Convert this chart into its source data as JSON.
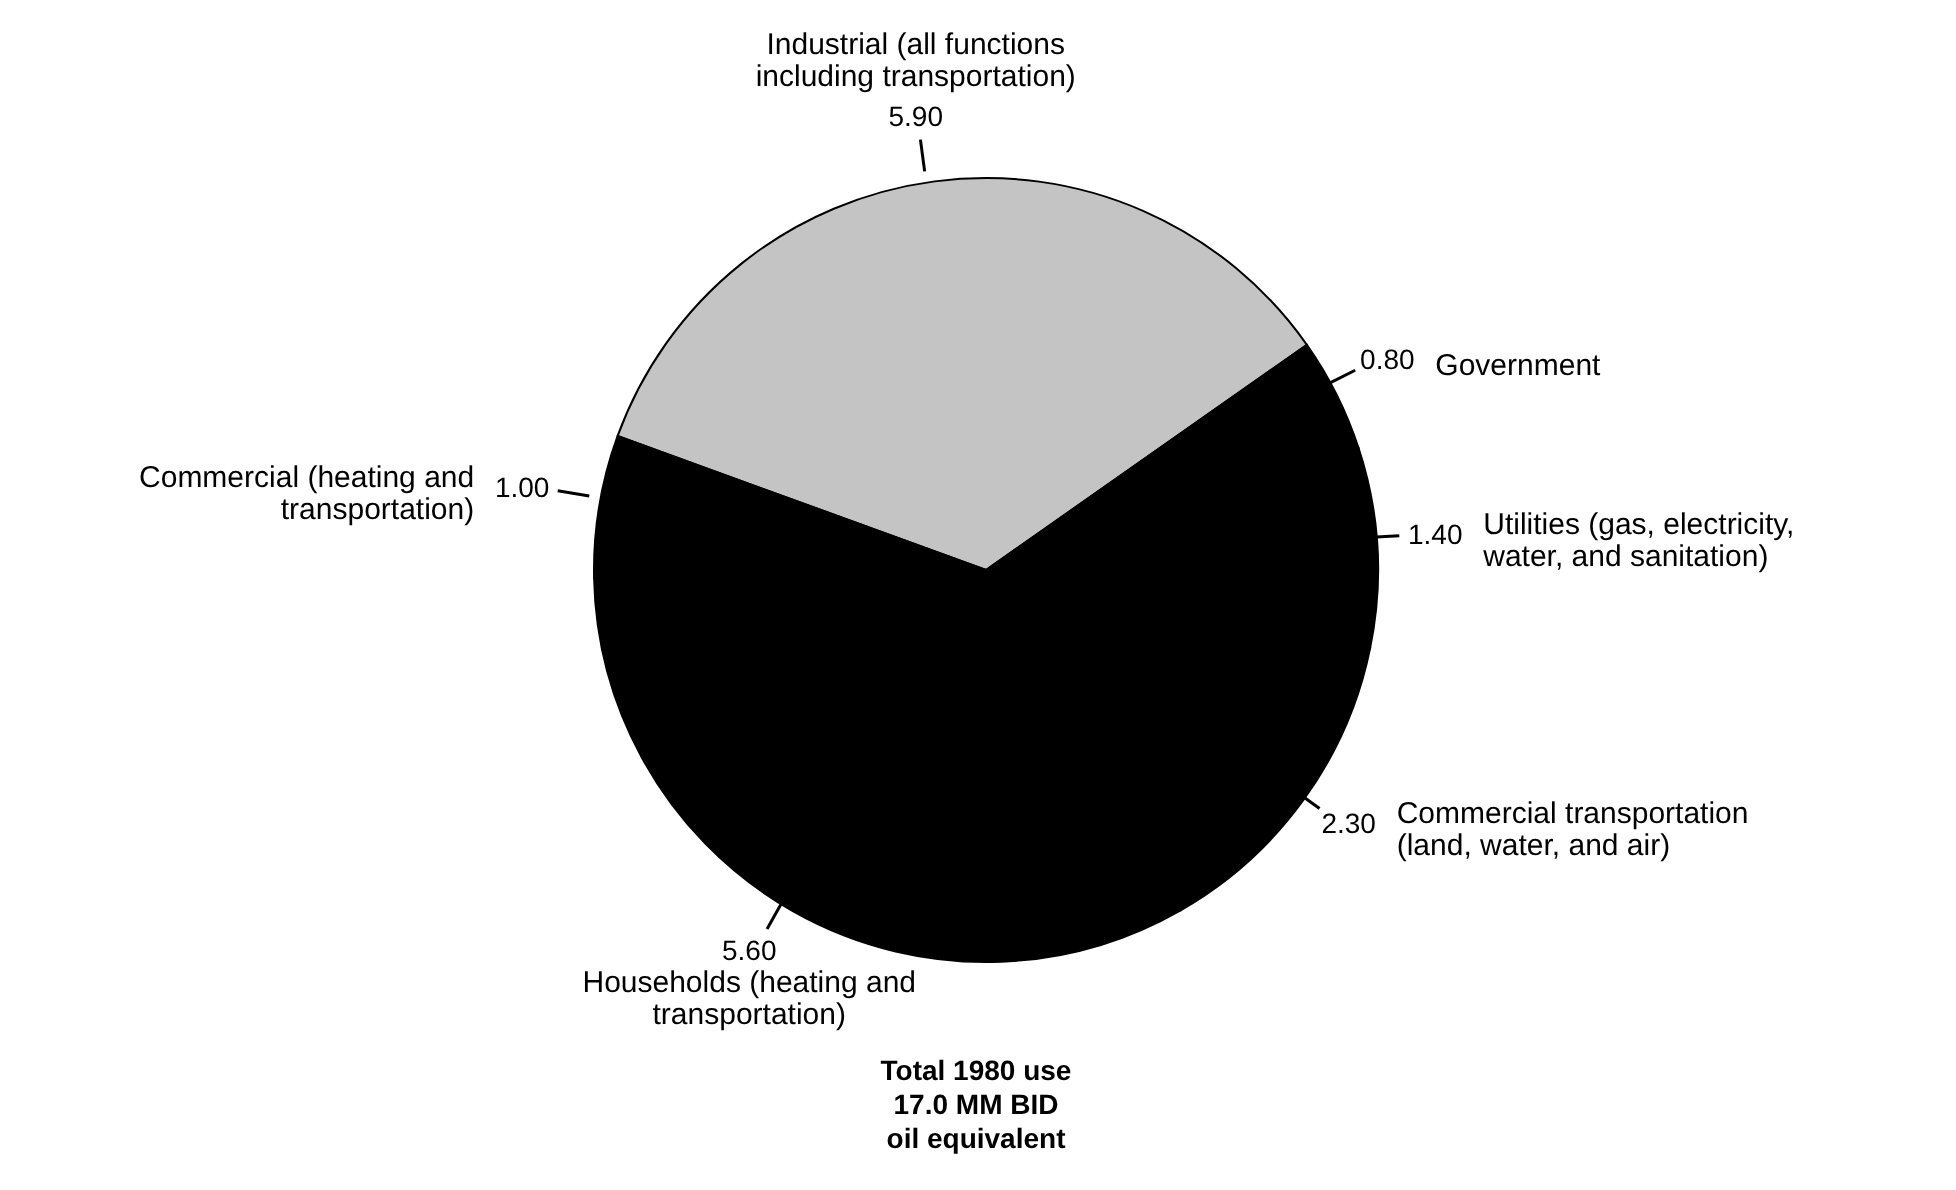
{
  "chart_data": {
    "type": "pie",
    "categories": [
      "Industrial (all functions including transportation)",
      "Government",
      "Utilities (gas, electricity, water, and sanitation)",
      "Commercial transportation (land, water, and air)",
      "Households (heating and transportation)",
      "Commercial (heating and transportation)"
    ],
    "values": [
      5.9,
      0.8,
      1.4,
      2.3,
      5.6,
      1.0
    ],
    "colors": [
      "#c4c4c4",
      "#000000",
      "#000000",
      "#000000",
      "#000000",
      "#000000"
    ],
    "value_labels": [
      "5.90",
      "0.80",
      "1.40",
      "2.30",
      "5.60",
      "1.00"
    ],
    "annotations": [
      "Total 1980 use 17.0 MM BID oil equivalent"
    ]
  }
}
